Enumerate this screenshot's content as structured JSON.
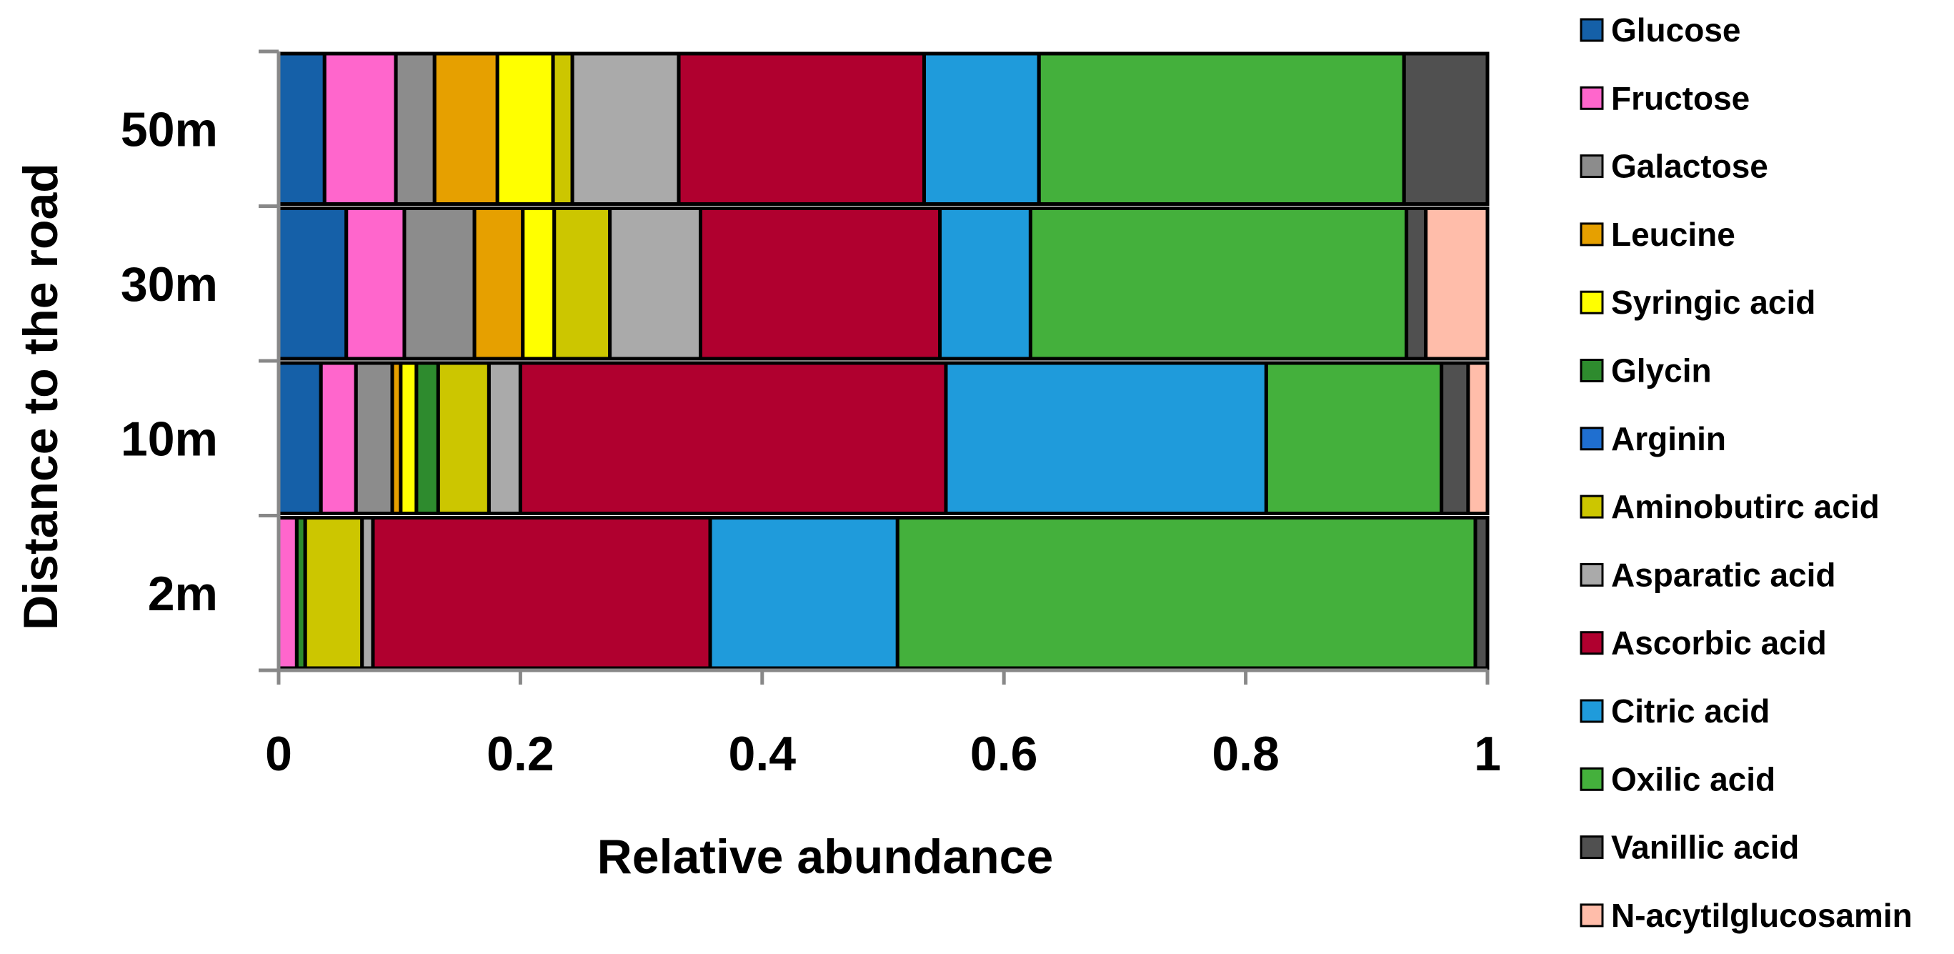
{
  "chart_data": {
    "type": "bar",
    "orientation": "horizontal",
    "stacked": true,
    "title": "",
    "xlabel": "Relative abundance",
    "ylabel": "Distance to the road",
    "xlim": [
      0,
      1
    ],
    "xticks": [
      "0",
      "0.2",
      "0.4",
      "0.6",
      "0.8",
      "1"
    ],
    "categories": [
      "50m",
      "30m",
      "10m",
      "2m"
    ],
    "legend_position": "right",
    "grid": false,
    "series": [
      {
        "name": "Glucose",
        "color": "#1560A8",
        "values": [
          0.038,
          0.056,
          0.035,
          0.0
        ]
      },
      {
        "name": "Fructose",
        "color": "#FF66CC",
        "values": [
          0.059,
          0.048,
          0.029,
          0.015
        ]
      },
      {
        "name": "Galactose",
        "color": "#8C8C8C",
        "values": [
          0.032,
          0.058,
          0.03,
          0.0
        ]
      },
      {
        "name": "Leucine",
        "color": "#E6A000",
        "values": [
          0.052,
          0.04,
          0.007,
          0.0
        ]
      },
      {
        "name": "Syringic acid",
        "color": "#FFFF00",
        "values": [
          0.046,
          0.026,
          0.013,
          0.0
        ]
      },
      {
        "name": "Glycin",
        "color": "#2E8B2E",
        "values": [
          0.0,
          0.0,
          0.018,
          0.007
        ]
      },
      {
        "name": "Arginin",
        "color": "#1F6FD0",
        "values": [
          0.0,
          0.0,
          0.0,
          0.0
        ]
      },
      {
        "name": "Aminobutirc acid",
        "color": "#CCC600",
        "values": [
          0.016,
          0.046,
          0.042,
          0.047
        ]
      },
      {
        "name": "Asparatic acid",
        "color": "#AAAAAA",
        "values": [
          0.088,
          0.075,
          0.026,
          0.009
        ]
      },
      {
        "name": "Ascorbic acid",
        "color": "#B0002F",
        "values": [
          0.203,
          0.198,
          0.352,
          0.279
        ]
      },
      {
        "name": "Citric acid",
        "color": "#1F9BDB",
        "values": [
          0.095,
          0.075,
          0.265,
          0.155
        ]
      },
      {
        "name": "Oxilic acid",
        "color": "#44B03C",
        "values": [
          0.302,
          0.311,
          0.145,
          0.478
        ]
      },
      {
        "name": "Vanillic acid",
        "color": "#505050",
        "values": [
          0.069,
          0.016,
          0.022,
          0.01
        ]
      },
      {
        "name": "N-acytilglucosamin",
        "color": "#FFBDAA",
        "values": [
          0.0,
          0.051,
          0.016,
          0.0
        ]
      }
    ]
  }
}
